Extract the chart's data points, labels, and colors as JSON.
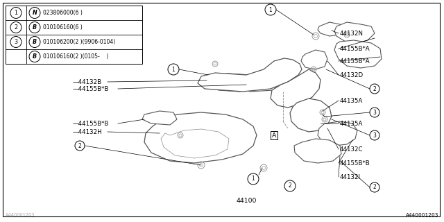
{
  "bg_color": "#ffffff",
  "line_color": "#000000",
  "text_color": "#000000",
  "gray_line": "#888888",
  "legend_rows": [
    {
      "num": "1",
      "letter": "N",
      "desc": "023806000(6 )"
    },
    {
      "num": "2",
      "letter": "B",
      "desc": "010106160(6 )"
    },
    {
      "num": "3",
      "letter": "B",
      "desc": "010106200(2 )(9906-0104)"
    },
    {
      "num": "",
      "letter": "B",
      "desc": "010106160(2 )(0105-    )"
    }
  ],
  "footer_text": "A440001203",
  "label_fontsize": 6.2,
  "legend_fontsize": 5.8,
  "callout_fontsize": 5.5
}
